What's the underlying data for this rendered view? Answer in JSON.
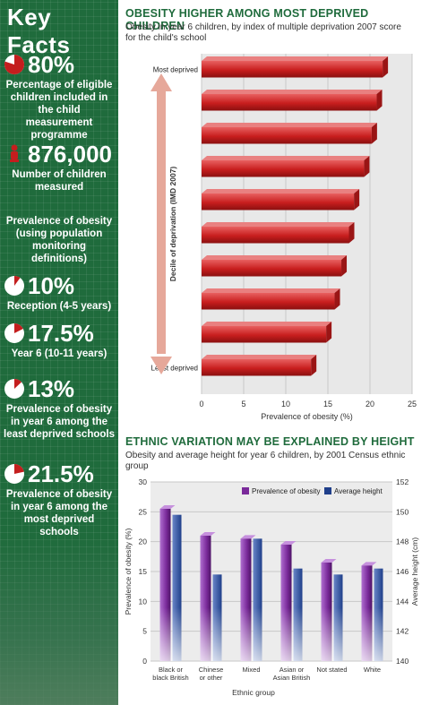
{
  "sidebar": {
    "title": "Key Facts",
    "facts": [
      {
        "value": "80%",
        "desc": "Percentage of eligible children included in the child measurement programme",
        "icon": "pie-icon",
        "fraction": 0.8
      },
      {
        "value": "876,000",
        "desc": "Number of children measured",
        "icon": "child-figure-icon"
      },
      {
        "value": "",
        "desc": "Prevalence of obesity (using population monitoring definitions)",
        "icon": ""
      },
      {
        "value": "10%",
        "desc": "Reception (4-5 years)",
        "icon": "pie-icon",
        "fraction": 0.1
      },
      {
        "value": "17.5%",
        "desc": "Year 6 (10-11 years)",
        "icon": "pie-icon",
        "fraction": 0.175
      },
      {
        "value": "13%",
        "desc": "Prevalence of obesity in year 6 among the least deprived schools",
        "icon": "pie-icon",
        "fraction": 0.13
      },
      {
        "value": "21.5%",
        "desc": "Prevalence of obesity in year 6 among the most deprived schools",
        "icon": "pie-icon",
        "fraction": 0.215
      }
    ],
    "colors": {
      "bg": "#1f6b3c",
      "pie_fill": "#c41e1e"
    }
  },
  "chart_data": [
    {
      "type": "bar",
      "orientation": "horizontal",
      "title": "OBESITY HIGHER AMONG MOST DEPRIVED CHILDREN",
      "subtitle": "Obesity in year 6 children, by index of multiple deprivation 2007 score for the child's school",
      "xlabel": "Prevalence of obesity (%)",
      "ylabel": "Decile of deprivation (IMD 2007)",
      "xlim": [
        0,
        25
      ],
      "xticks": [
        0,
        5,
        10,
        15,
        20,
        25
      ],
      "category_labels": [
        "Most deprived",
        "",
        "",
        "",
        "",
        "",
        "",
        "",
        "",
        "Least deprived"
      ],
      "values": [
        21.5,
        20.8,
        20.2,
        19.3,
        18.1,
        17.5,
        16.6,
        15.8,
        14.8,
        13.0
      ],
      "grid": true,
      "colors": {
        "bar": "#c81e1e",
        "bar_light": "#e86060",
        "bg": "#e8e8e8",
        "arrow": "#e6a89a"
      }
    },
    {
      "type": "bar",
      "title": "ETHNIC VARIATION MAY BE EXPLAINED BY HEIGHT",
      "subtitle": "Obesity and average height for year 6 children, by 2001 Census ethnic group",
      "xlabel": "Ethnic group",
      "ylabel": "Prevalence of obesity (%)",
      "ylabel2": "Average height (cm)",
      "categories": [
        "Black or black British",
        "Chinese or other",
        "Mixed",
        "Asian or Asian British",
        "Not stated",
        "White"
      ],
      "series": [
        {
          "name": "Prevalence of obesity",
          "axis": "left",
          "values": [
            25.5,
            21.0,
            20.5,
            19.5,
            16.5,
            16.0
          ],
          "color": "#7a2a9a"
        },
        {
          "name": "Average height",
          "axis": "right",
          "values": [
            149.8,
            145.8,
            148.2,
            146.2,
            145.8,
            146.2
          ],
          "color": "#1f3f8a"
        }
      ],
      "ylim": [
        0,
        30
      ],
      "yticks": [
        0,
        5,
        10,
        15,
        20,
        25,
        30
      ],
      "ylim2": [
        140,
        152
      ],
      "yticks2": [
        140,
        142,
        144,
        146,
        148,
        150,
        152
      ],
      "legend": "top-right",
      "grid": true
    }
  ]
}
